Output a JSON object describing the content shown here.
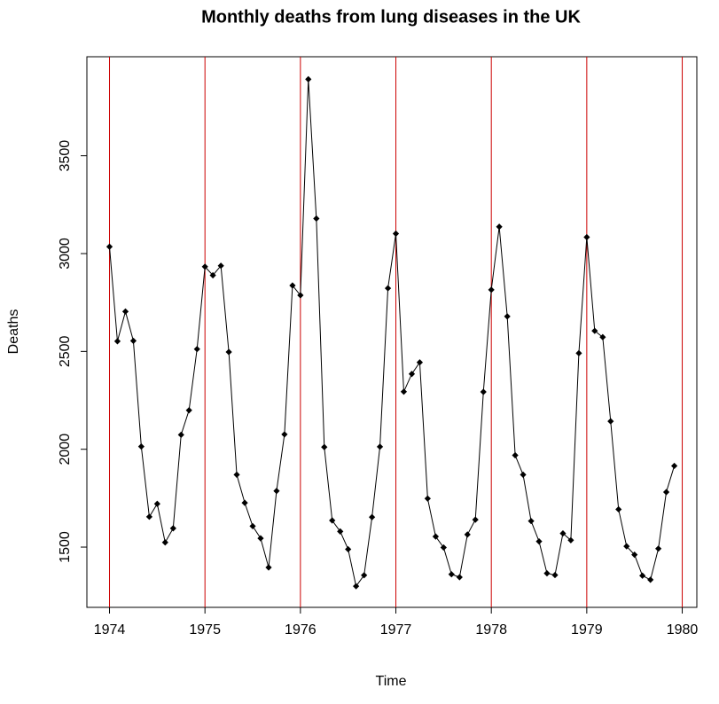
{
  "chart_data": {
    "type": "line",
    "title": "Monthly deaths from lung diseases in the UK",
    "x_label": "Time",
    "y_label": "Deaths",
    "x": [
      1974,
      1974.083,
      1974.167,
      1974.25,
      1974.333,
      1974.417,
      1974.5,
      1974.583,
      1974.667,
      1974.75,
      1974.833,
      1974.917,
      1975,
      1975.083,
      1975.167,
      1975.25,
      1975.333,
      1975.417,
      1975.5,
      1975.583,
      1975.667,
      1975.75,
      1975.833,
      1975.917,
      1976,
      1976.083,
      1976.167,
      1976.25,
      1976.333,
      1976.417,
      1976.5,
      1976.583,
      1976.667,
      1976.75,
      1976.833,
      1976.917,
      1977,
      1977.083,
      1977.167,
      1977.25,
      1977.333,
      1977.417,
      1977.5,
      1977.583,
      1977.667,
      1977.75,
      1977.833,
      1977.917,
      1978,
      1978.083,
      1978.167,
      1978.25,
      1978.333,
      1978.417,
      1978.5,
      1978.583,
      1978.667,
      1978.75,
      1978.833,
      1978.917,
      1979,
      1979.083,
      1979.167,
      1979.25,
      1979.333,
      1979.417,
      1979.5,
      1979.583,
      1979.667,
      1979.75,
      1979.833,
      1979.917
    ],
    "series": [
      {
        "name": "Deaths",
        "color": "#000000",
        "values": [
          3035,
          2552,
          2704,
          2554,
          2014,
          1655,
          1721,
          1524,
          1596,
          2074,
          2199,
          2512,
          2933,
          2889,
          2938,
          2497,
          1870,
          1726,
          1607,
          1545,
          1396,
          1787,
          2076,
          2837,
          2787,
          3891,
          3179,
          2011,
          1636,
          1580,
          1489,
          1300,
          1356,
          1653,
          2013,
          2823,
          3102,
          2294,
          2385,
          2444,
          1748,
          1554,
          1498,
          1361,
          1346,
          1564,
          1640,
          2293,
          2815,
          3137,
          2679,
          1969,
          1870,
          1633,
          1529,
          1366,
          1357,
          1570,
          1535,
          2491,
          3084,
          2605,
          2573,
          2143,
          1693,
          1504,
          1461,
          1354,
          1333,
          1492,
          1781,
          1915
        ]
      }
    ],
    "vlines": [
      1974,
      1975,
      1976,
      1977,
      1978,
      1979,
      1980
    ],
    "vline_color": "#cc0000",
    "xlim": [
      1973.763,
      1980.153
    ],
    "xticks": [
      1974,
      1975,
      1976,
      1977,
      1978,
      1979,
      1980
    ],
    "ylim": [
      1192,
      4006
    ],
    "yticks": [
      1500,
      2000,
      2500,
      3000,
      3500
    ]
  }
}
